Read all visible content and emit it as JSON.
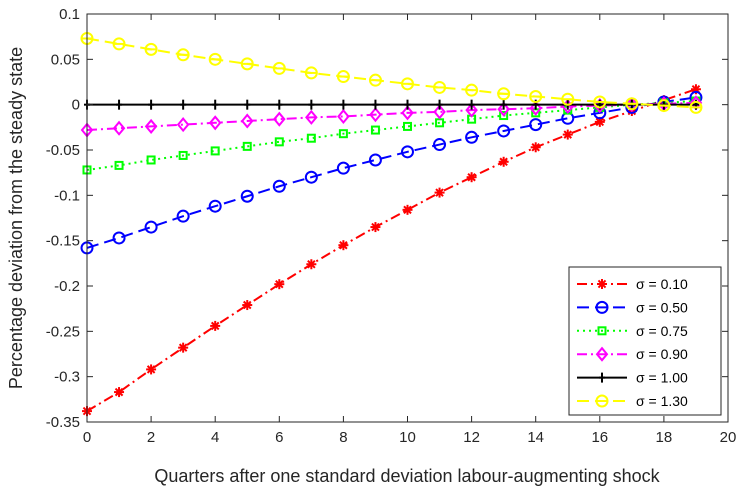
{
  "chart_data": {
    "type": "line",
    "xlabel": "Quarters after one standard deviation labour-augmenting shock",
    "ylabel": "Percentage deviation from the steady state",
    "xlim": [
      0,
      20
    ],
    "ylim": [
      -0.35,
      0.1
    ],
    "xticks": [
      "0",
      "2",
      "4",
      "6",
      "8",
      "10",
      "12",
      "14",
      "16",
      "18",
      "20"
    ],
    "yticks": [
      "0.1",
      "0.05",
      "0",
      "-0.05",
      "-0.1",
      "-0.15",
      "-0.2",
      "-0.25",
      "-0.3",
      "-0.35"
    ],
    "x": [
      0,
      1,
      2,
      3,
      4,
      5,
      6,
      7,
      8,
      9,
      10,
      11,
      12,
      13,
      14,
      15,
      16,
      17,
      18,
      19
    ],
    "legend_position": "bottom-right",
    "series": [
      {
        "name": "σ = 0.10",
        "color": "#ff0000",
        "marker": "asterisk",
        "dash": "dashdot",
        "values": [
          -0.338,
          -0.317,
          -0.292,
          -0.268,
          -0.244,
          -0.221,
          -0.198,
          -0.176,
          -0.155,
          -0.135,
          -0.116,
          -0.097,
          -0.08,
          -0.063,
          -0.047,
          -0.033,
          -0.019,
          -0.007,
          0.005,
          0.017
        ]
      },
      {
        "name": "σ = 0.50",
        "color": "#0000ff",
        "marker": "circle",
        "dash": "dashed",
        "values": [
          -0.158,
          -0.147,
          -0.135,
          -0.123,
          -0.112,
          -0.101,
          -0.09,
          -0.08,
          -0.07,
          -0.061,
          -0.052,
          -0.044,
          -0.036,
          -0.029,
          -0.022,
          -0.015,
          -0.009,
          -0.003,
          0.003,
          0.008
        ]
      },
      {
        "name": "σ = 0.75",
        "color": "#00ff00",
        "marker": "square",
        "dash": "dotted",
        "values": [
          -0.072,
          -0.067,
          -0.061,
          -0.056,
          -0.051,
          -0.046,
          -0.041,
          -0.037,
          -0.032,
          -0.028,
          -0.024,
          -0.02,
          -0.016,
          -0.012,
          -0.009,
          -0.006,
          -0.003,
          0.0,
          0.002,
          0.004
        ]
      },
      {
        "name": "σ = 0.90",
        "color": "#ff00ff",
        "marker": "diamond",
        "dash": "dashdot",
        "values": [
          -0.028,
          -0.026,
          -0.024,
          -0.022,
          -0.02,
          -0.018,
          -0.016,
          -0.014,
          -0.013,
          -0.011,
          -0.009,
          -0.008,
          -0.006,
          -0.005,
          -0.004,
          -0.002,
          -0.001,
          0.0,
          0.001,
          0.002
        ]
      },
      {
        "name": "σ = 1.00",
        "color": "#000000",
        "marker": "plus",
        "dash": "solid",
        "values": [
          0,
          0,
          0,
          0,
          0,
          0,
          0,
          0,
          0,
          0,
          0,
          0,
          0,
          0,
          0,
          0,
          0,
          0,
          0,
          0
        ]
      },
      {
        "name": "σ = 1.30",
        "color": "#ffff00",
        "marker": "circle-bar",
        "dash": "dashed",
        "values": [
          0.073,
          0.067,
          0.061,
          0.055,
          0.05,
          0.045,
          0.04,
          0.035,
          0.031,
          0.027,
          0.023,
          0.019,
          0.016,
          0.012,
          0.009,
          0.006,
          0.003,
          0.001,
          -0.001,
          -0.003
        ]
      }
    ]
  }
}
